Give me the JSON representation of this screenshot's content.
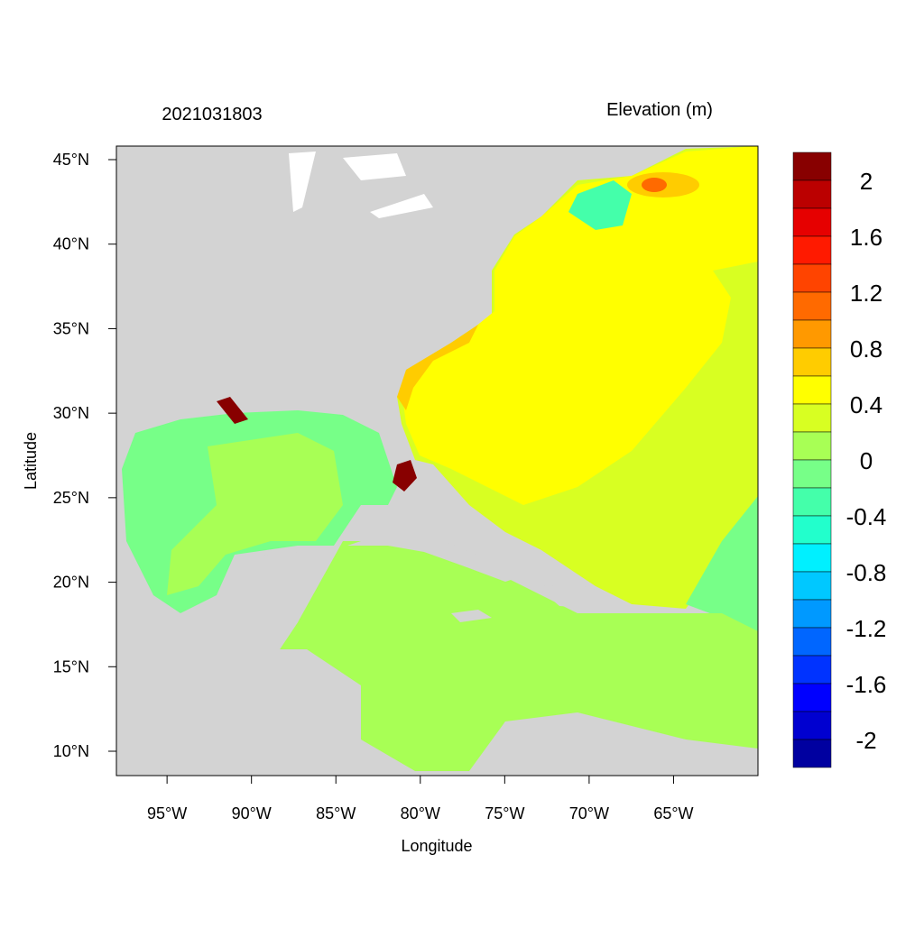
{
  "chart_data": {
    "type": "map",
    "title": "2021031803",
    "colorbar_title": "Elevation (m)",
    "x_label": "Longitude",
    "y_label": "Latitude",
    "xlim": [
      -98,
      -60
    ],
    "ylim": [
      8.56,
      45.8
    ],
    "xticks": [
      {
        "value": -95,
        "label": "95°W"
      },
      {
        "value": -90,
        "label": "90°W"
      },
      {
        "value": -85,
        "label": "85°W"
      },
      {
        "value": -80,
        "label": "80°W"
      },
      {
        "value": -75,
        "label": "75°W"
      },
      {
        "value": -70,
        "label": "70°W"
      },
      {
        "value": -65,
        "label": "65°W"
      }
    ],
    "yticks": [
      {
        "value": 10,
        "label": "10°N"
      },
      {
        "value": 15,
        "label": "15°N"
      },
      {
        "value": 20,
        "label": "20°N"
      },
      {
        "value": 25,
        "label": "25°N"
      },
      {
        "value": 30,
        "label": "30°N"
      },
      {
        "value": 35,
        "label": "35°N"
      },
      {
        "value": 40,
        "label": "40°N"
      },
      {
        "value": 45,
        "label": "45°N"
      }
    ],
    "colorbar": {
      "levels": [
        2,
        1.8,
        1.6,
        1.4,
        1.2,
        1,
        0.8,
        0.6,
        0.4,
        0.2,
        0,
        -0.2,
        -0.4,
        -0.6,
        -0.8,
        -1,
        -1.2,
        -1.4,
        -1.6,
        -1.8,
        -2
      ],
      "ticks": [
        2,
        1.6,
        1.2,
        0.8,
        0.4,
        0,
        -0.4,
        -0.8,
        -1.2,
        -1.6,
        -2
      ],
      "colors": [
        "#880000",
        "#bb0000",
        "#e60000",
        "#ff1a00",
        "#ff4400",
        "#ff6a00",
        "#ff9900",
        "#ffcc00",
        "#ffff00",
        "#d8ff22",
        "#a8ff55",
        "#77ff88",
        "#44ffaa",
        "#22ffcc",
        "#00f0ff",
        "#00c8ff",
        "#0099ff",
        "#0066ff",
        "#0033ff",
        "#0000ff",
        "#0000d0",
        "#0000a0"
      ]
    }
  }
}
